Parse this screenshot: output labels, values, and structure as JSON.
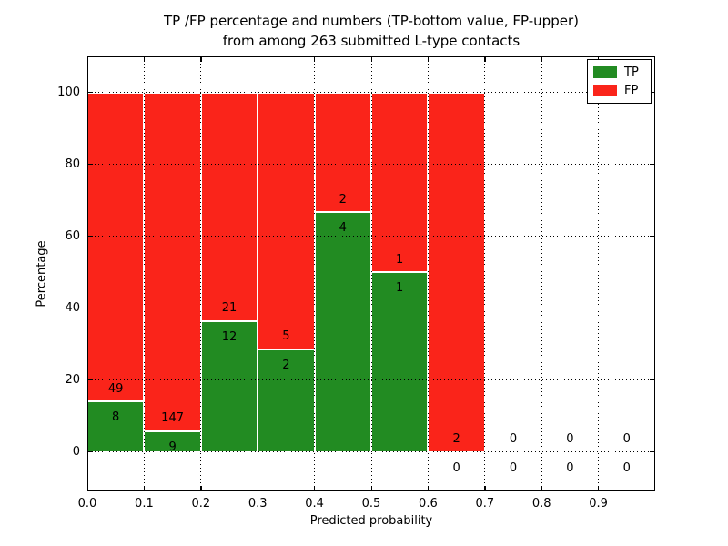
{
  "figure": {
    "title_line1": "TP /FP percentage and numbers (TP-bottom value, FP-upper)",
    "title_line2": "from among 263 submitted L-type contacts"
  },
  "chart_data": {
    "type": "bar",
    "stacked": true,
    "normalized_to_percent": true,
    "title": "TP /FP percentage and numbers (TP-bottom value, FP-upper) from among 263 submitted L-type contacts",
    "xlabel": "Predicted probability",
    "ylabel": "Percentage",
    "xlim": [
      0.0,
      1.0
    ],
    "ylim": [
      -11,
      110
    ],
    "x_tick_labels": [
      "0.0",
      "0.1",
      "0.2",
      "0.3",
      "0.4",
      "0.5",
      "0.6",
      "0.7",
      "0.8",
      "0.9"
    ],
    "x_tick_positions": [
      0.0,
      0.1,
      0.2,
      0.3,
      0.4,
      0.5,
      0.6,
      0.7,
      0.8,
      0.9
    ],
    "y_ticks": [
      0,
      20,
      40,
      60,
      80,
      100
    ],
    "grid": "dotted",
    "total_contacts": 263,
    "bins": [
      {
        "x_start": 0.0,
        "x_end": 0.1,
        "tp": 8,
        "fp": 49,
        "tp_pct": 14.0,
        "fp_pct": 86.0
      },
      {
        "x_start": 0.1,
        "x_end": 0.2,
        "tp": 9,
        "fp": 147,
        "tp_pct": 5.8,
        "fp_pct": 94.2
      },
      {
        "x_start": 0.2,
        "x_end": 0.3,
        "tp": 12,
        "fp": 21,
        "tp_pct": 36.4,
        "fp_pct": 63.6
      },
      {
        "x_start": 0.3,
        "x_end": 0.4,
        "tp": 2,
        "fp": 5,
        "tp_pct": 28.6,
        "fp_pct": 71.4
      },
      {
        "x_start": 0.4,
        "x_end": 0.5,
        "tp": 4,
        "fp": 2,
        "tp_pct": 66.7,
        "fp_pct": 33.3
      },
      {
        "x_start": 0.5,
        "x_end": 0.6,
        "tp": 1,
        "fp": 1,
        "tp_pct": 50.0,
        "fp_pct": 50.0
      },
      {
        "x_start": 0.6,
        "x_end": 0.7,
        "tp": 0,
        "fp": 2,
        "tp_pct": 0.0,
        "fp_pct": 100.0
      },
      {
        "x_start": 0.7,
        "x_end": 0.8,
        "tp": 0,
        "fp": 0,
        "tp_pct": 0.0,
        "fp_pct": 0.0
      },
      {
        "x_start": 0.8,
        "x_end": 0.9,
        "tp": 0,
        "fp": 0,
        "tp_pct": 0.0,
        "fp_pct": 0.0
      },
      {
        "x_start": 0.9,
        "x_end": 1.0,
        "tp": 0,
        "fp": 0,
        "tp_pct": 0.0,
        "fp_pct": 0.0
      }
    ],
    "legend": [
      {
        "label": "TP",
        "color": "#228B22"
      },
      {
        "label": "FP",
        "color": "#FA241A"
      }
    ],
    "legend_position": "upper right",
    "colors": {
      "tp": "#228B22",
      "fp": "#FA241A",
      "grid": "#000000",
      "text": "#000000"
    }
  }
}
